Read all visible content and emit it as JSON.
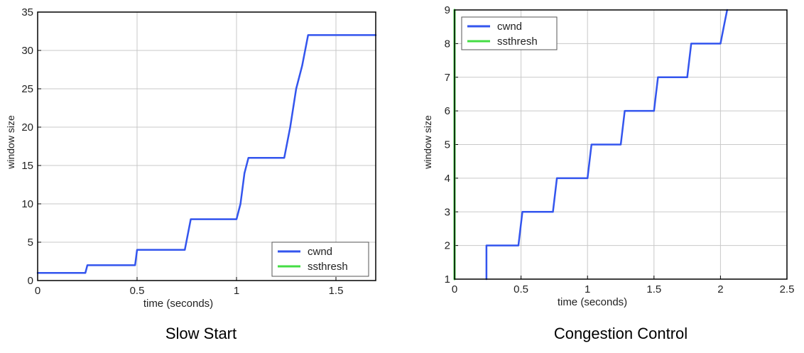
{
  "chart_data": [
    {
      "type": "line",
      "caption": "Slow Start",
      "xlabel": "time (seconds)",
      "ylabel": "window size",
      "xlim": [
        0,
        1.7
      ],
      "ylim": [
        0,
        35
      ],
      "xticks": [
        0,
        0.5,
        1,
        1.5
      ],
      "xtick_labels": [
        "0",
        "0.5",
        "1",
        "1.5"
      ],
      "yticks": [
        0,
        5,
        10,
        15,
        20,
        25,
        30,
        35
      ],
      "ytick_labels": [
        "0",
        "5",
        "10",
        "15",
        "20",
        "25",
        "30",
        "35"
      ],
      "grid": true,
      "legend_position": "bottom-right",
      "series": [
        {
          "name": "cwnd",
          "color": "#3355ee",
          "x": [
            0,
            0.24,
            0.25,
            0.49,
            0.5,
            0.74,
            0.77,
            1.0,
            1.02,
            1.04,
            1.06,
            1.24,
            1.27,
            1.3,
            1.33,
            1.36,
            1.7
          ],
          "y": [
            1,
            1,
            2,
            2,
            4,
            4,
            8,
            8,
            10,
            14,
            16,
            16,
            20,
            25,
            28,
            32,
            32
          ]
        },
        {
          "name": "ssthresh",
          "color": "#44dd44",
          "x": [],
          "y": []
        }
      ]
    },
    {
      "type": "line",
      "caption": "Congestion Control",
      "xlabel": "time (seconds)",
      "ylabel": "window size",
      "xlim": [
        0,
        2.5
      ],
      "ylim": [
        1,
        9
      ],
      "xticks": [
        0,
        0.5,
        1,
        1.5,
        2,
        2.5
      ],
      "xtick_labels": [
        "0",
        "0.5",
        "1",
        "1.5",
        "2",
        "2.5"
      ],
      "yticks": [
        1,
        2,
        3,
        4,
        5,
        6,
        7,
        8,
        9
      ],
      "ytick_labels": [
        "1",
        "2",
        "3",
        "4",
        "5",
        "6",
        "7",
        "8",
        "9"
      ],
      "grid": true,
      "legend_position": "top-left",
      "series": [
        {
          "name": "cwnd",
          "color": "#3355ee",
          "x": [
            0.24,
            0.24,
            0.48,
            0.51,
            0.74,
            0.77,
            1.0,
            1.03,
            1.25,
            1.28,
            1.5,
            1.53,
            1.75,
            1.78,
            2.0,
            2.03,
            2.05
          ],
          "y": [
            1,
            2,
            2,
            3,
            3,
            4,
            4,
            5,
            5,
            6,
            6,
            7,
            7,
            8,
            8,
            8.6,
            9
          ]
        },
        {
          "name": "ssthresh",
          "color": "#44dd44",
          "x": [
            0,
            0
          ],
          "y": [
            1,
            9
          ]
        }
      ]
    }
  ]
}
